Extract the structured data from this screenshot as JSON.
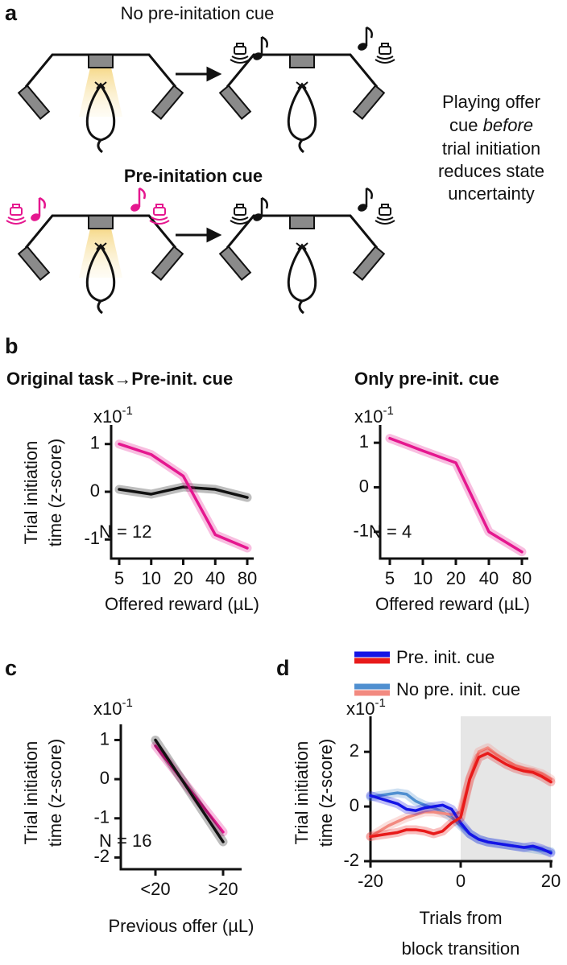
{
  "panel_labels": [
    "a",
    "b",
    "c",
    "d"
  ],
  "diagram": {
    "top_caption": "No pre-initation cue",
    "bottom_caption": "Pre-initation cue",
    "side_text": [
      "Playing offer",
      "cue",
      "before",
      "trial initiation",
      "reduces state",
      "uncertainty"
    ]
  },
  "chart_data": [
    {
      "type": "line",
      "title": "Original task→Pre-init. cue",
      "y_multiplier": {
        "base": "x10",
        "exponent": "-1"
      },
      "ylabel": [
        "Trial initiation",
        "time (z-score)"
      ],
      "xlabel": "Offered reward (µL)",
      "note": "N = 12",
      "categories": [
        "5",
        "10",
        "20",
        "40",
        "80"
      ],
      "series": [
        {
          "color": "#111111",
          "values": [
            0.05,
            -0.05,
            0.1,
            0.05,
            -0.12
          ]
        },
        {
          "color": "#e5178f",
          "values": [
            1.0,
            0.78,
            0.33,
            -0.9,
            -1.18
          ]
        }
      ],
      "ylim": [
        -1.4,
        1.4
      ],
      "yticks": [
        1,
        0,
        -1
      ]
    },
    {
      "type": "line",
      "title": "Only pre-init. cue",
      "y_multiplier": {
        "base": "x10",
        "exponent": "-1"
      },
      "xlabel": "Offered reward (µL)",
      "note": "N = 4",
      "categories": [
        "5",
        "10",
        "20",
        "40",
        "80"
      ],
      "series": [
        {
          "color": "#e5178f",
          "values": [
            1.1,
            0.82,
            0.55,
            -1.0,
            -1.45
          ]
        }
      ],
      "ylim": [
        -1.6,
        1.4
      ],
      "yticks": [
        1,
        0,
        -1
      ]
    },
    {
      "type": "line",
      "y_multiplier": {
        "base": "x10",
        "exponent": "-1"
      },
      "ylabel": [
        "Trial initiation",
        "time (z-score)"
      ],
      "xlabel": "Previous offer (µL)",
      "note": "N = 16",
      "categories": [
        "<20",
        ">20"
      ],
      "series": [
        {
          "color": "#e5178f",
          "values": [
            0.85,
            -1.35
          ]
        },
        {
          "color": "#111111",
          "values": [
            1.0,
            -1.6
          ]
        }
      ],
      "ylim": [
        -2.3,
        1.4
      ],
      "yticks": [
        1,
        0,
        -1,
        -2
      ]
    },
    {
      "type": "line",
      "y_multiplier": {
        "base": "x10",
        "exponent": "-1"
      },
      "ylabel": [
        "Trial initiation",
        "time (z-score)"
      ],
      "xlabel": [
        "Trials from",
        "block transition"
      ],
      "legend": [
        {
          "label": "Pre. init. cue",
          "colors": [
            "#1414e6",
            "#e81a1a"
          ]
        },
        {
          "label": "No pre. init. cue",
          "colors": [
            "#4f8fd0",
            "#f28a80"
          ]
        }
      ],
      "shade": [
        0,
        20
      ],
      "x": [
        -20,
        -18,
        -16,
        -14,
        -12,
        -10,
        -8,
        -6,
        -4,
        -2,
        0,
        2,
        4,
        6,
        8,
        10,
        12,
        14,
        16,
        18,
        20
      ],
      "series": [
        {
          "color": "#4f8fd0",
          "values": [
            0.35,
            0.4,
            0.45,
            0.5,
            0.45,
            0.2,
            0.05,
            -0.05,
            -0.2,
            -0.4,
            -0.7,
            -1.0,
            -1.2,
            -1.3,
            -1.35,
            -1.4,
            -1.45,
            -1.5,
            -1.55,
            -1.6,
            -1.65
          ]
        },
        {
          "color": "#f28a80",
          "values": [
            -1.1,
            -0.9,
            -0.7,
            -0.55,
            -0.4,
            -0.3,
            -0.2,
            -0.2,
            -0.25,
            -0.3,
            -0.2,
            1.0,
            2.0,
            2.15,
            1.9,
            1.7,
            1.5,
            1.4,
            1.3,
            1.2,
            1.0
          ]
        },
        {
          "color": "#1414e6",
          "values": [
            0.4,
            0.3,
            0.2,
            0.1,
            -0.1,
            -0.15,
            -0.05,
            0.0,
            0.05,
            -0.1,
            -0.6,
            -1.0,
            -1.2,
            -1.3,
            -1.35,
            -1.4,
            -1.45,
            -1.5,
            -1.45,
            -1.55,
            -1.7
          ]
        },
        {
          "color": "#e81a1a",
          "values": [
            -1.1,
            -1.05,
            -1.0,
            -0.95,
            -0.85,
            -0.85,
            -0.9,
            -1.0,
            -0.9,
            -0.6,
            -0.4,
            1.0,
            1.8,
            1.95,
            1.75,
            1.55,
            1.4,
            1.3,
            1.25,
            1.1,
            0.9
          ]
        }
      ],
      "xlim": [
        -20,
        20
      ],
      "xticks": [
        -20,
        0,
        20
      ],
      "ylim": [
        -2,
        3.3
      ],
      "yticks": [
        2,
        0,
        -2
      ]
    }
  ]
}
